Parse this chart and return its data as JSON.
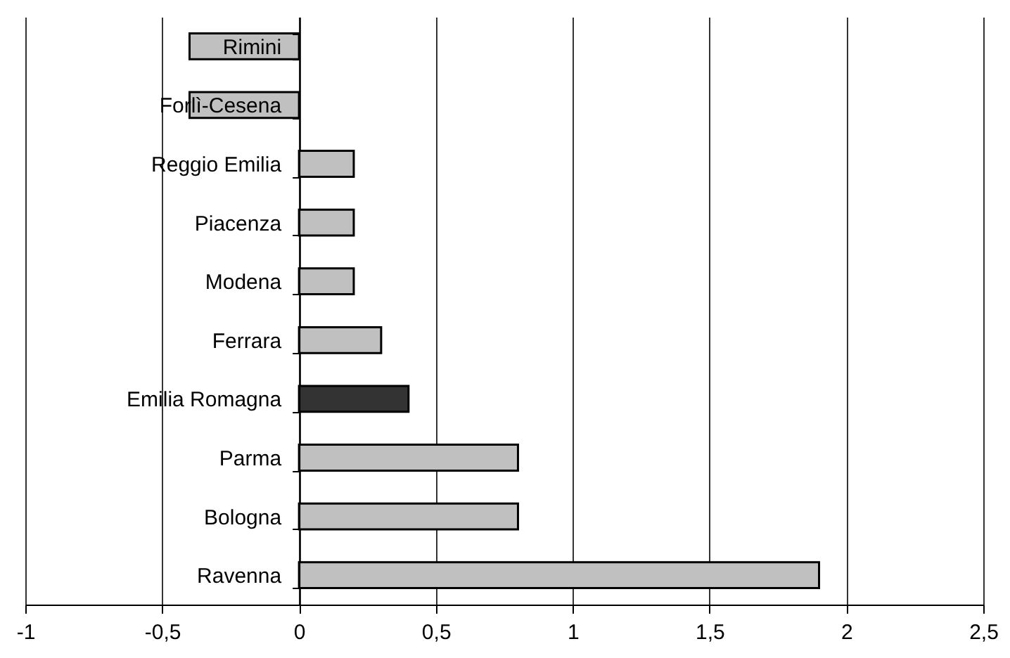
{
  "chart_data": {
    "type": "bar",
    "orientation": "horizontal",
    "categories": [
      "Rimini",
      "Forlì-Cesena",
      "Reggio Emilia",
      "Piacenza",
      "Modena",
      "Ferrara",
      "Emilia Romagna",
      "Parma",
      "Bologna",
      "Ravenna"
    ],
    "values": [
      -0.4,
      -0.4,
      0.2,
      0.2,
      0.2,
      0.3,
      0.4,
      0.8,
      0.8,
      1.9
    ],
    "colors": [
      "#c0c0c0",
      "#c0c0c0",
      "#c0c0c0",
      "#c0c0c0",
      "#c0c0c0",
      "#c0c0c0",
      "#333333",
      "#c0c0c0",
      "#c0c0c0",
      "#c0c0c0"
    ],
    "xlim": [
      -1,
      2.5
    ],
    "xticks": [
      -1,
      {
        "value": -0.5,
        "label": "-0,5"
      },
      0,
      {
        "value": 0.5,
        "label": "0,5"
      },
      1,
      {
        "value": 1.5,
        "label": "1,5"
      },
      2,
      {
        "value": 2.5,
        "label": "2,5"
      }
    ],
    "grid": "x"
  }
}
